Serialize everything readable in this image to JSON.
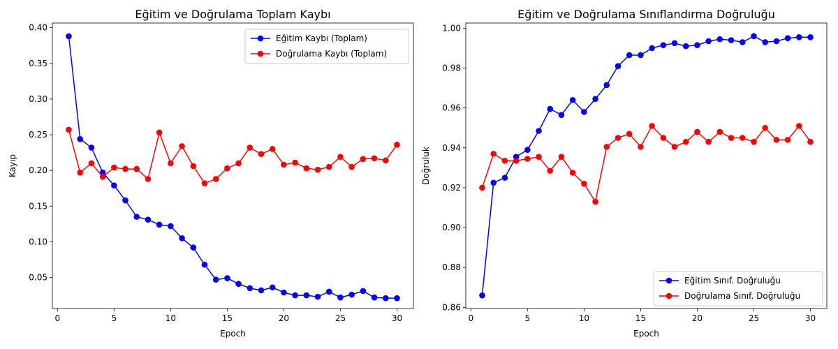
{
  "chart_data": [
    {
      "type": "line",
      "title": "Eğitim ve Doğrulama Toplam Kaybı",
      "xlabel": "Epoch",
      "ylabel": "Kayıp",
      "xlim": [
        -0.45,
        31.45
      ],
      "ylim": [
        0.0065,
        0.4065
      ],
      "xticks": [
        "0",
        "5",
        "10",
        "15",
        "20",
        "25",
        "30"
      ],
      "yticks": [
        "0.05",
        "0.10",
        "0.15",
        "0.20",
        "0.25",
        "0.30",
        "0.35",
        "0.40"
      ],
      "legend_position": "upper-right",
      "grid": false,
      "x": [
        1,
        2,
        3,
        4,
        5,
        6,
        7,
        8,
        9,
        10,
        11,
        12,
        13,
        14,
        15,
        16,
        17,
        18,
        19,
        20,
        21,
        22,
        23,
        24,
        25,
        26,
        27,
        28,
        29,
        30
      ],
      "series": [
        {
          "name": "Eğitim Kaybı (Toplam)",
          "color": "#0000ff",
          "values": [
            0.388,
            0.244,
            0.232,
            0.197,
            0.179,
            0.158,
            0.135,
            0.131,
            0.124,
            0.122,
            0.105,
            0.092,
            0.068,
            0.047,
            0.049,
            0.041,
            0.035,
            0.032,
            0.036,
            0.029,
            0.025,
            0.025,
            0.023,
            0.03,
            0.022,
            0.026,
            0.031,
            0.022,
            0.021,
            0.021
          ]
        },
        {
          "name": "Doğrulama Kaybı (Toplam)",
          "color": "#ff0000",
          "values": [
            0.257,
            0.197,
            0.21,
            0.191,
            0.204,
            0.202,
            0.202,
            0.188,
            0.253,
            0.21,
            0.234,
            0.206,
            0.182,
            0.188,
            0.203,
            0.21,
            0.232,
            0.223,
            0.23,
            0.208,
            0.211,
            0.203,
            0.201,
            0.205,
            0.219,
            0.205,
            0.216,
            0.217,
            0.214,
            0.236
          ]
        }
      ]
    },
    {
      "type": "line",
      "title": "Eğitim ve Doğrulama Sınıflandırma Doğruluğu",
      "xlabel": "Epoch",
      "ylabel": "Doğruluk",
      "xlim": [
        -0.45,
        31.45
      ],
      "ylim": [
        0.8594,
        1.0026
      ],
      "xticks": [
        "0",
        "5",
        "10",
        "15",
        "20",
        "25",
        "30"
      ],
      "yticks": [
        "0.86",
        "0.88",
        "0.90",
        "0.92",
        "0.94",
        "0.96",
        "0.98",
        "1.00"
      ],
      "legend_position": "lower-right",
      "grid": false,
      "x": [
        1,
        2,
        3,
        4,
        5,
        6,
        7,
        8,
        9,
        10,
        11,
        12,
        13,
        14,
        15,
        16,
        17,
        18,
        19,
        20,
        21,
        22,
        23,
        24,
        25,
        26,
        27,
        28,
        29,
        30
      ],
      "series": [
        {
          "name": "Eğitim Sınıf. Doğruluğu",
          "color": "#0000ff",
          "values": [
            0.866,
            0.9225,
            0.925,
            0.9355,
            0.939,
            0.9485,
            0.9595,
            0.9565,
            0.964,
            0.958,
            0.9645,
            0.9715,
            0.981,
            0.9865,
            0.9865,
            0.99,
            0.9915,
            0.9925,
            0.991,
            0.9915,
            0.9935,
            0.9945,
            0.994,
            0.993,
            0.996,
            0.993,
            0.9935,
            0.995,
            0.9955,
            0.9955
          ]
        },
        {
          "name": "Doğrulama Sınıf. Doğruluğu",
          "color": "#ff0000",
          "values": [
            0.92,
            0.937,
            0.9335,
            0.9335,
            0.9345,
            0.9355,
            0.9285,
            0.9355,
            0.9275,
            0.922,
            0.913,
            0.9405,
            0.945,
            0.947,
            0.9405,
            0.951,
            0.945,
            0.9405,
            0.943,
            0.948,
            0.943,
            0.948,
            0.945,
            0.945,
            0.943,
            0.95,
            0.944,
            0.944,
            0.951,
            0.943
          ]
        }
      ]
    }
  ]
}
